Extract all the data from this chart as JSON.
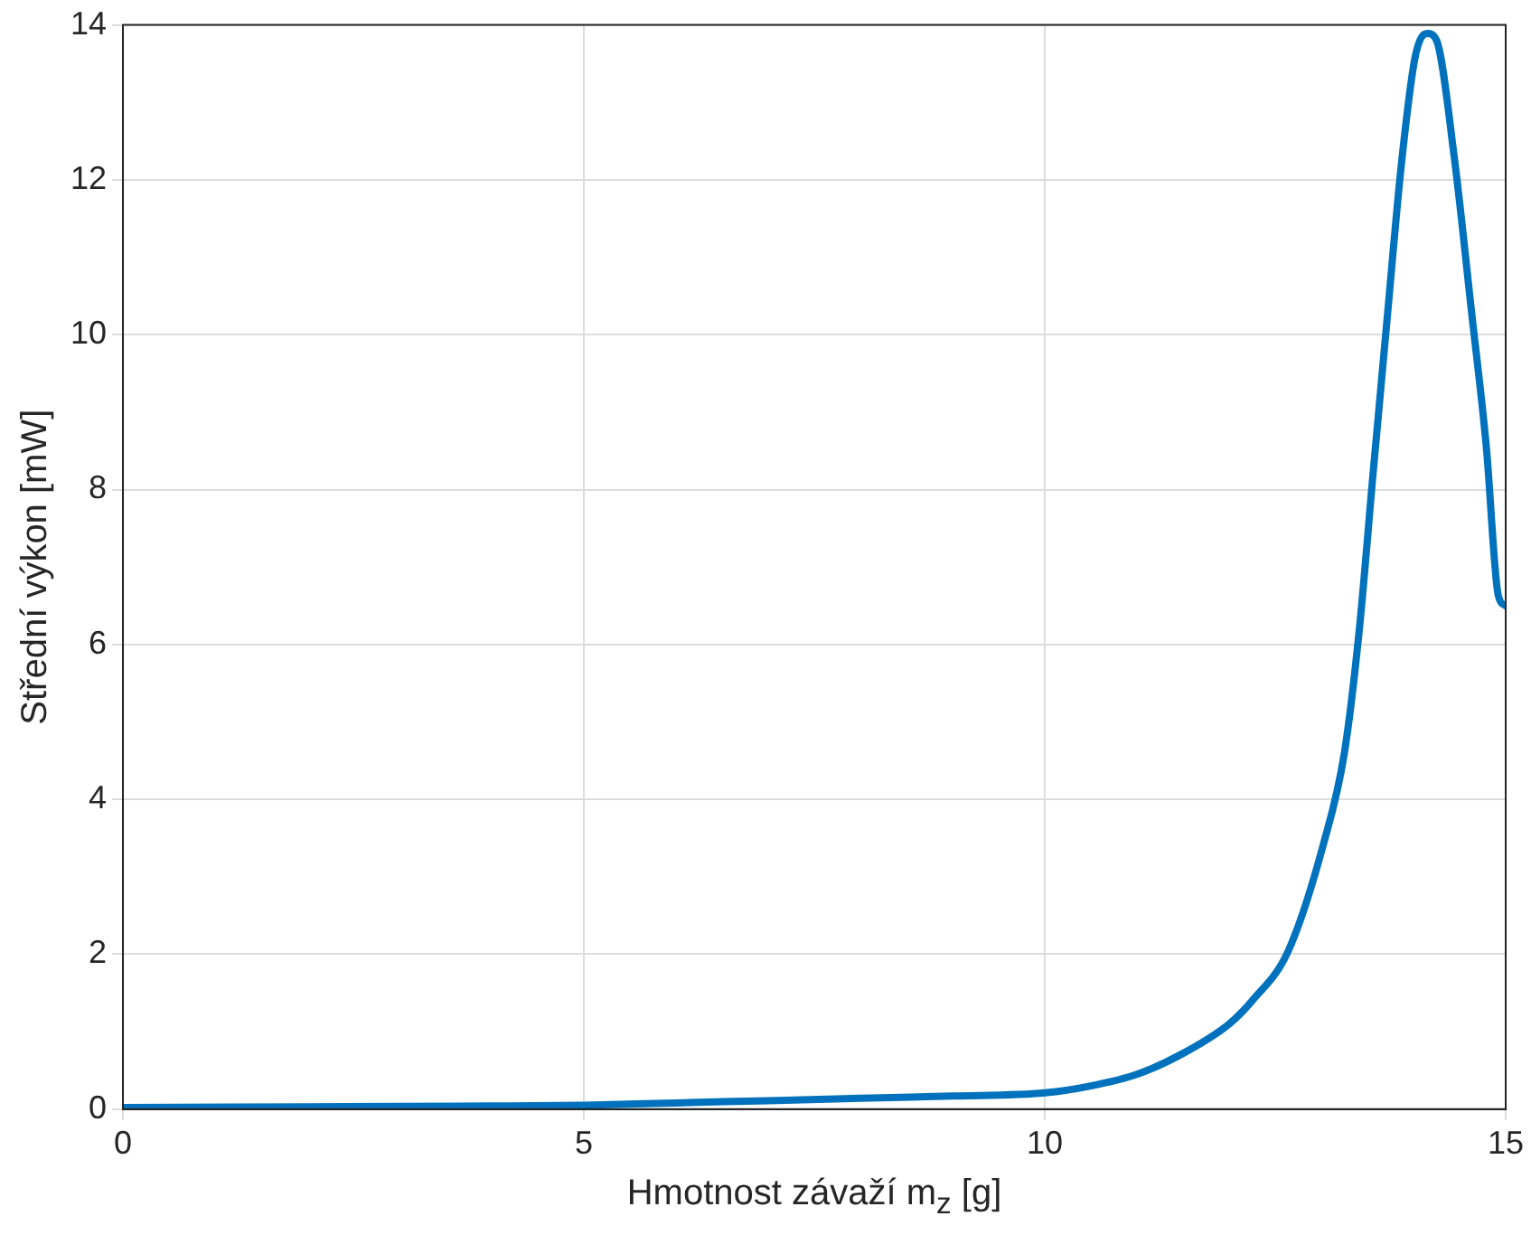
{
  "chart_data": {
    "type": "line",
    "xlabel": "Hmotnost závaží m$_{z}$ [g]",
    "ylabel": "Střední výkon [mW]",
    "xlim": [
      0,
      15
    ],
    "xticks": [
      0,
      5,
      10,
      15
    ],
    "ylim": [
      0,
      14
    ],
    "yticks": [
      0,
      2,
      4,
      6,
      8,
      10,
      12,
      14
    ],
    "grid": true,
    "legend": false,
    "marker": "none",
    "line_style": "solid",
    "series": [
      {
        "color": "#0072bd",
        "x": [
          0,
          2,
          4,
          5,
          6,
          7,
          8,
          9,
          10,
          10.5,
          11,
          11.5,
          12,
          12.25,
          12.64,
          13.02,
          13.25,
          13.41,
          13.56,
          13.72,
          13.87,
          14.02,
          14.15,
          14.25,
          14.44,
          14.63,
          14.79,
          14.92,
          15
        ],
        "values": [
          0.02,
          0.03,
          0.04,
          0.05,
          0.08,
          0.11,
          0.14,
          0.17,
          0.21,
          0.3,
          0.45,
          0.72,
          1.1,
          1.4,
          2.04,
          3.41,
          4.6,
          6.17,
          8.19,
          10.29,
          12.22,
          13.6,
          13.89,
          13.8,
          12.31,
          10.29,
          8.55,
          6.63,
          6.5
        ]
      }
    ]
  }
}
